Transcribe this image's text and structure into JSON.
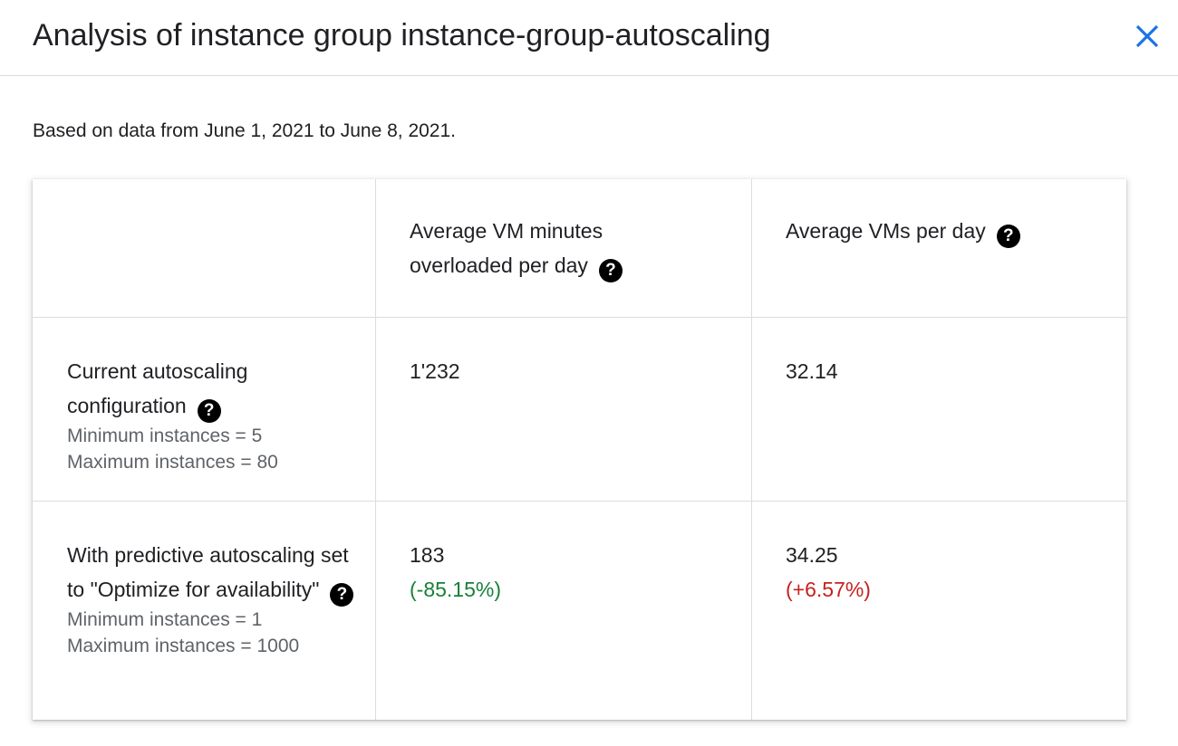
{
  "dialog": {
    "title": "Analysis of instance group instance-group-autoscaling",
    "close_icon": "close-icon",
    "subtitle": "Based on data from June 1, 2021 to June 8, 2021."
  },
  "table": {
    "columns": [
      "",
      "Average VM minutes overloaded per day",
      "Average VMs per day"
    ],
    "help_icon": "question-circle-icon",
    "help_glyph": "?",
    "rows": [
      {
        "label": "Current autoscaling configuration",
        "details": [
          "Minimum instances = 5",
          "Maximum instances = 80"
        ],
        "overloaded_minutes": "1'232",
        "overloaded_delta": "",
        "vms_per_day": "32.14",
        "vms_delta": ""
      },
      {
        "label": "With predictive autoscaling set to \"Optimize for availability\"",
        "details": [
          "Minimum instances = 1",
          "Maximum instances = 1000"
        ],
        "overloaded_minutes": "183",
        "overloaded_delta": "(-85.15%)",
        "vms_per_day": "34.25",
        "vms_delta": "(+6.57%)"
      }
    ]
  },
  "colors": {
    "accent": "#1a73e8",
    "positive": "#188038",
    "negative": "#c5221f",
    "muted_text": "#5f6368",
    "divider": "#dadce0"
  }
}
